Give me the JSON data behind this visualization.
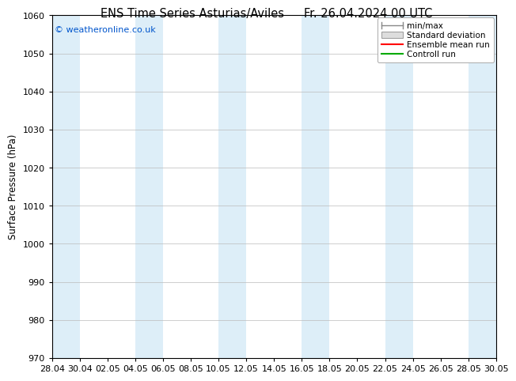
{
  "title_left": "ENS Time Series Asturias/Aviles",
  "title_right": "Fr. 26.04.2024 00 UTC",
  "ylabel": "Surface Pressure (hPa)",
  "ylim": [
    970,
    1060
  ],
  "yticks": [
    970,
    980,
    990,
    1000,
    1010,
    1020,
    1030,
    1040,
    1050,
    1060
  ],
  "xtick_labels": [
    "28.04",
    "30.04",
    "02.05",
    "04.05",
    "06.05",
    "08.05",
    "10.05",
    "12.05",
    "14.05",
    "16.05",
    "18.05",
    "20.05",
    "22.05",
    "24.05",
    "26.05",
    "28.05",
    "30.05"
  ],
  "xtick_positions": [
    0,
    2,
    4,
    6,
    8,
    10,
    12,
    14,
    16,
    18,
    20,
    22,
    24,
    26,
    28,
    30,
    32
  ],
  "total_days": 32,
  "bg_color": "#ffffff",
  "band_color": "#ddeef8",
  "copyright_text": "© weatheronline.co.uk",
  "copyright_color": "#0055cc",
  "legend_entries": [
    "min/max",
    "Standard deviation",
    "Ensemble mean run",
    "Controll run"
  ],
  "legend_colors": [
    "#888888",
    "#cccccc",
    "#ff0000",
    "#00aa00"
  ],
  "title_fontsize": 10.5,
  "ylabel_fontsize": 8.5,
  "tick_fontsize": 8,
  "copyright_fontsize": 8,
  "legend_fontsize": 7.5
}
